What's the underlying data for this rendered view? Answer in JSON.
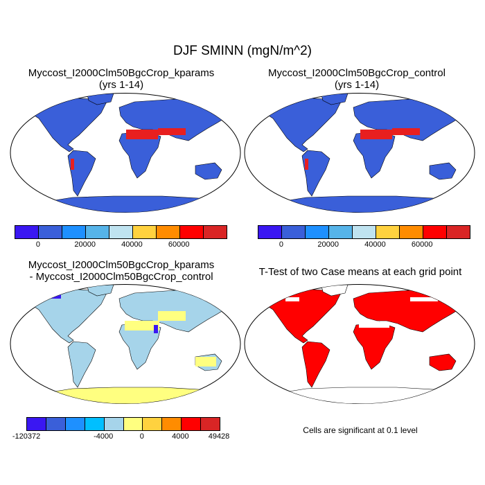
{
  "title": "DJF SMINN (mgN/m^2)",
  "panels": [
    {
      "title_line1": "Myccost_I2000Clm50BgcCrop_kparams",
      "title_line2": "(yrs 1-14)"
    },
    {
      "title_line1": "Myccost_I2000Clm50BgcCrop_control",
      "title_line2": "(yrs 1-14)"
    },
    {
      "title_line1": "Myccost_I2000Clm50BgcCrop_kparams",
      "title_line2": "- Myccost_I2000Clm50BgcCrop_control"
    },
    {
      "title_line1": "T-Test of two Case means at each grid point",
      "title_line2": ""
    }
  ],
  "colorbar_abs": {
    "colors": [
      "#3a17f2",
      "#3a5fd9",
      "#1e90ff",
      "#56b4e9",
      "#bfe3f0",
      "#ffd23f",
      "#ff8c00",
      "#ff0000",
      "#d92525"
    ],
    "labels": [
      "0",
      "20000",
      "40000",
      "60000"
    ]
  },
  "colorbar_diff": {
    "colors": [
      "#3a17f2",
      "#3a5fd9",
      "#1e90ff",
      "#00bfff",
      "#a6d4ea",
      "#ffff80",
      "#ffd23f",
      "#ff8c00",
      "#ff0000",
      "#d92525"
    ],
    "labels": [
      "-120372",
      "-4000",
      "0",
      "4000",
      "49428"
    ]
  },
  "significance_note": "Cells are significant at 0.1 level"
}
